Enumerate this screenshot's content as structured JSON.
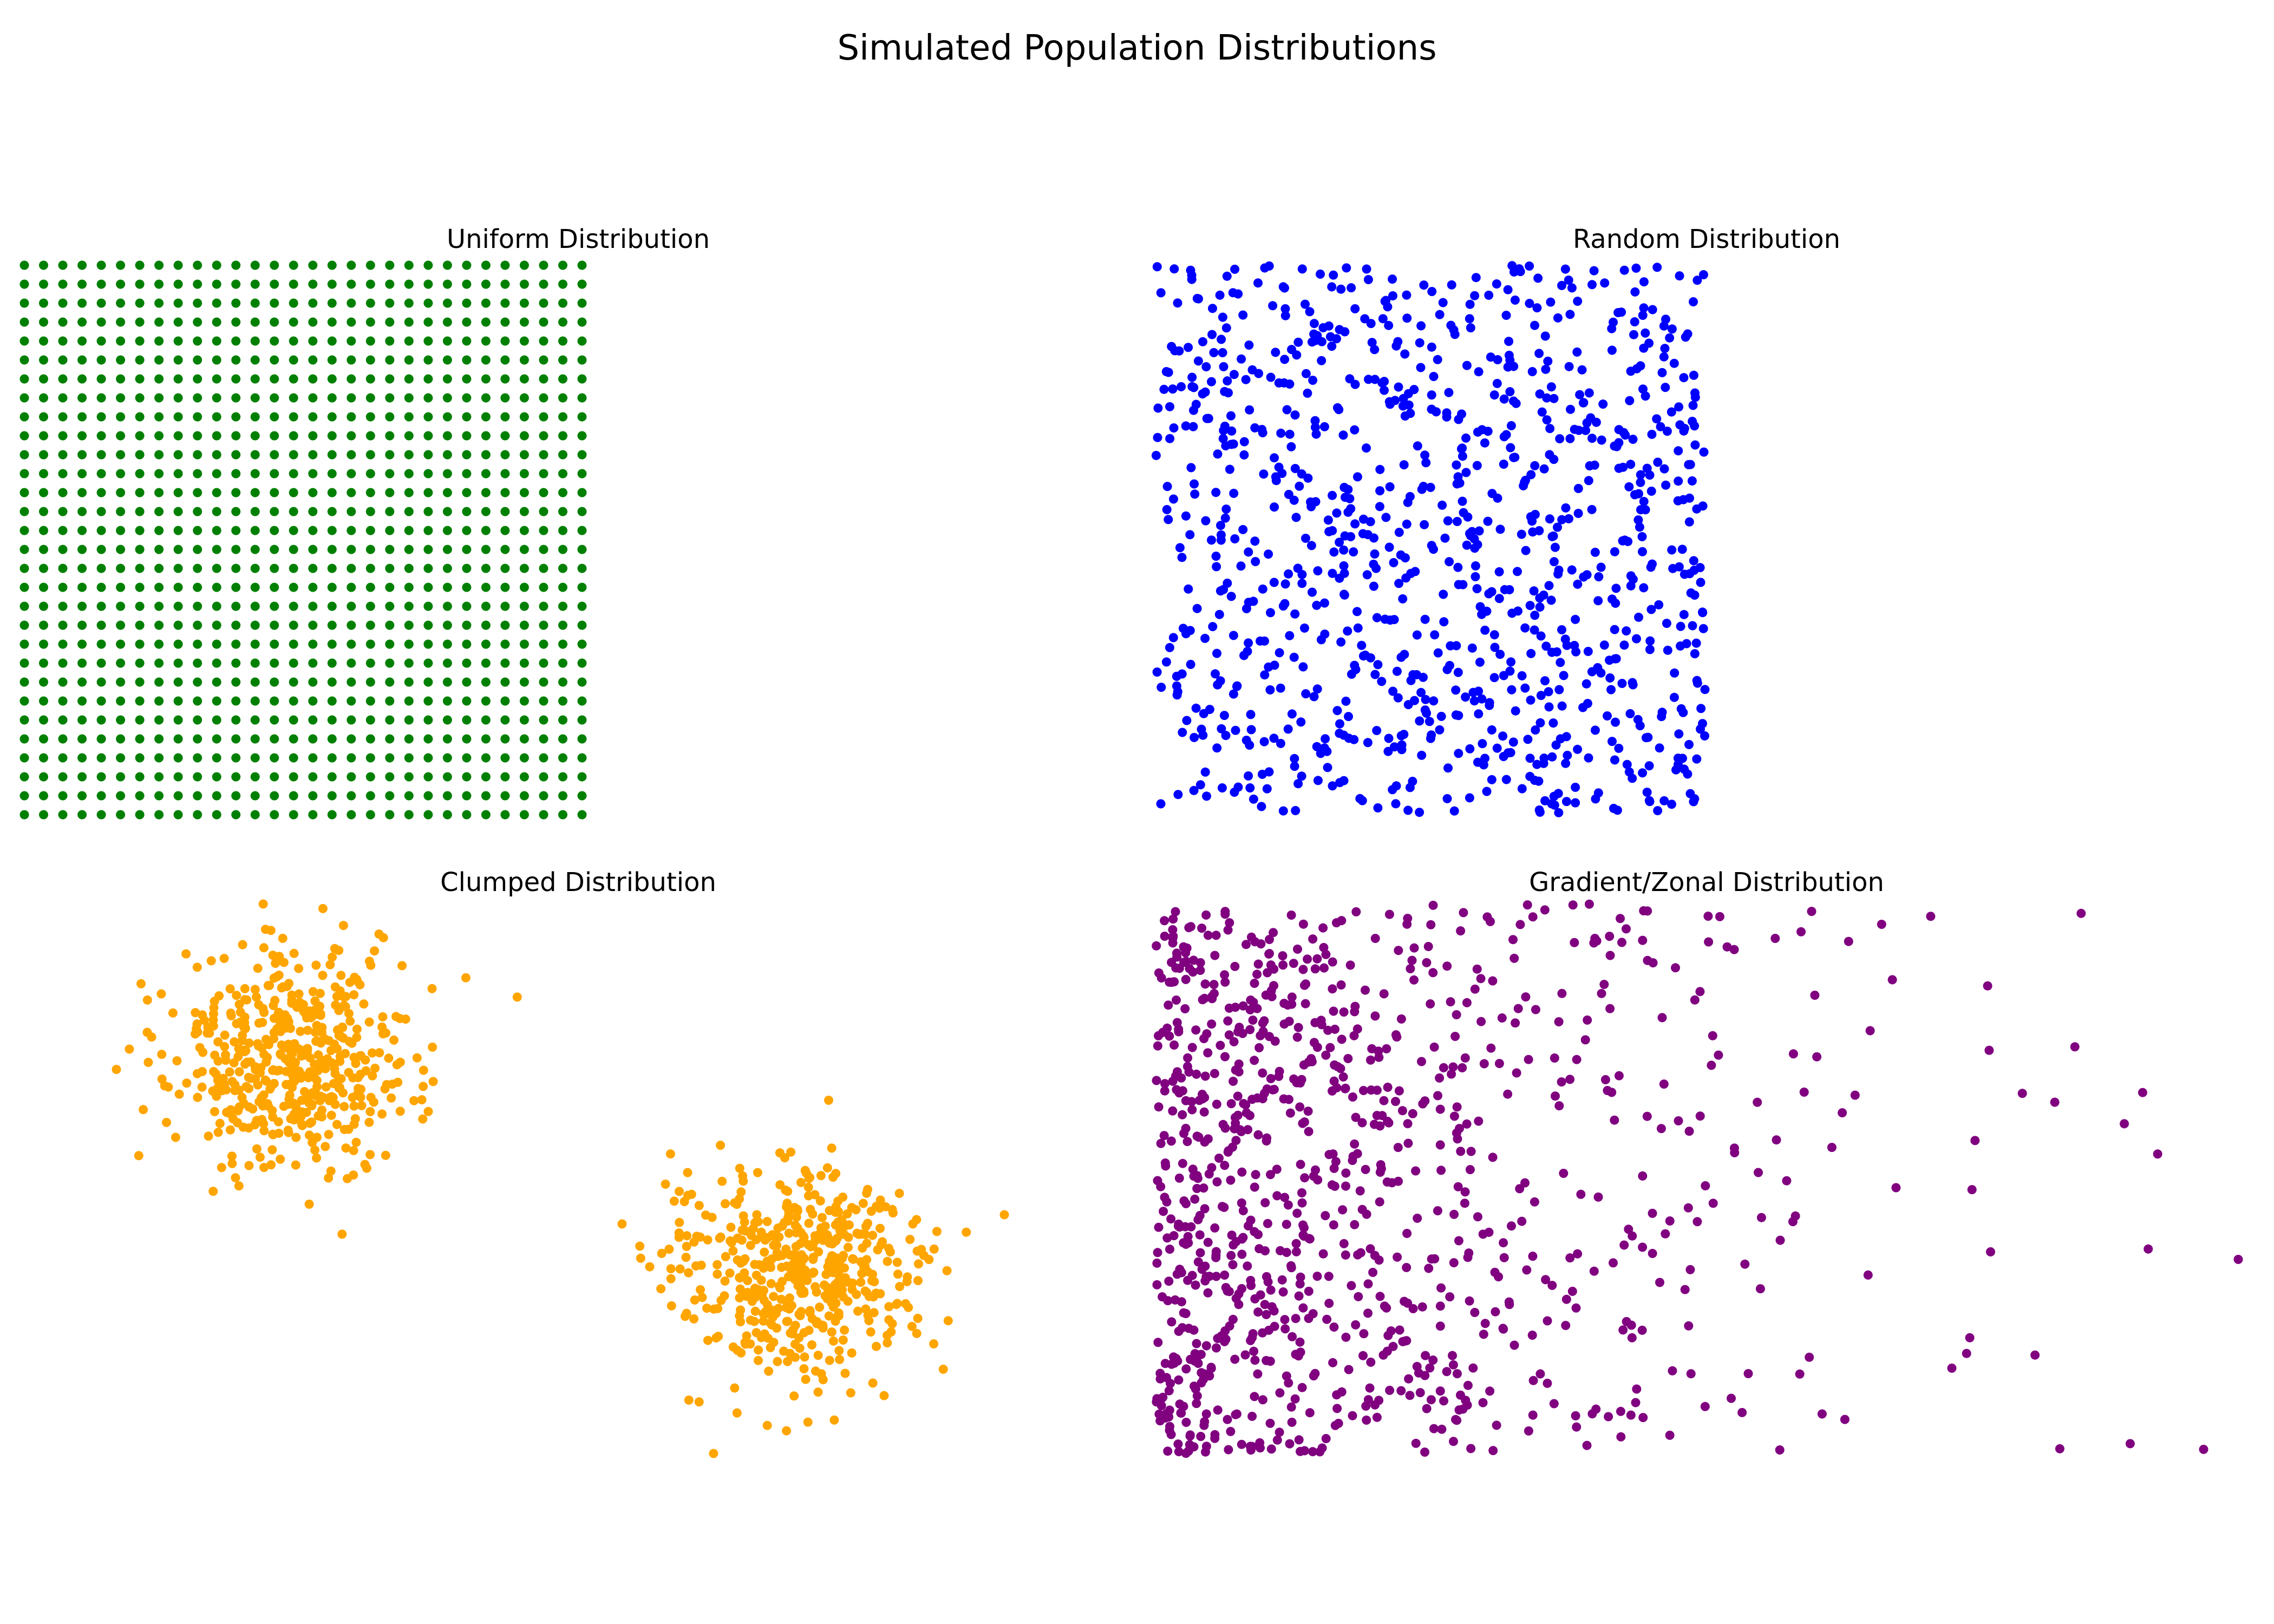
{
  "figure": {
    "title": "Simulated Population Distributions"
  },
  "chart_data": [
    {
      "type": "scatter",
      "title": "Uniform Distribution",
      "color": "#008000",
      "axes_visible": false,
      "grid": false,
      "points": {
        "kind": "grid",
        "nx": 30,
        "ny": 30,
        "xstart": 0,
        "xend": 29,
        "ystart": 0,
        "yend": 29
      },
      "xlim": [
        0,
        29
      ],
      "ylim": [
        0,
        29
      ]
    },
    {
      "type": "scatter",
      "title": "Random Distribution",
      "color": "#0000ff",
      "axes_visible": false,
      "grid": false,
      "points": {
        "kind": "uniform-random",
        "n": 1000,
        "xrange": [
          0,
          1
        ],
        "yrange": [
          0,
          1
        ]
      },
      "xlim": [
        0,
        1
      ],
      "ylim": [
        0,
        1
      ]
    },
    {
      "type": "scatter",
      "title": "Clumped Distribution",
      "color": "#ffa500",
      "axes_visible": false,
      "grid": false,
      "points": {
        "kind": "gaussian-clusters",
        "clusters": [
          {
            "center": [
              2.5,
              7.0
            ],
            "std": [
              0.6,
              1.0
            ],
            "n": 500
          },
          {
            "center": [
              7.5,
              3.0
            ],
            "std": [
              0.6,
              1.0
            ],
            "n": 500
          }
        ]
      },
      "xlim": [
        0,
        10
      ],
      "ylim": [
        0,
        10
      ]
    },
    {
      "type": "scatter",
      "title": "Gradient/Zonal Distribution",
      "color": "#800080",
      "axes_visible": false,
      "grid": false,
      "points": {
        "kind": "exponential-gradient",
        "n": 1000,
        "x_scale": 0.8,
        "yrange": [
          0,
          1
        ]
      },
      "xlim": [
        0,
        4
      ],
      "ylim": [
        0,
        1
      ]
    }
  ]
}
